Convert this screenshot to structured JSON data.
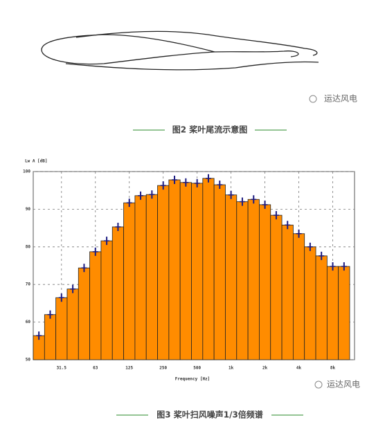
{
  "figure2": {
    "caption": "图2 桨叶尾流示意图",
    "watermark": "运达风电"
  },
  "chart_data": {
    "type": "bar",
    "y_label": "Lw A [dB]",
    "x_label": "Frequency [Hz]",
    "categories": [
      null,
      null,
      "31.5",
      null,
      null,
      "63",
      null,
      null,
      "125",
      null,
      null,
      "250",
      null,
      null,
      "500",
      null,
      null,
      "1k",
      null,
      null,
      "2k",
      null,
      null,
      "4k",
      null,
      null,
      "8k",
      null
    ],
    "values": [
      56.4,
      62,
      66.5,
      68.8,
      74.4,
      78.7,
      81.6,
      85.3,
      91.7,
      93.6,
      93.9,
      96.3,
      97.8,
      97.1,
      96.9,
      98.2,
      96.5,
      93.8,
      92,
      92.6,
      91.2,
      88.4,
      85.8,
      83.5,
      80,
      77.6,
      74.8,
      74.8
    ],
    "color": "#ff8c00",
    "marker_color": "#1a1a80",
    "ylim": [
      50,
      100
    ],
    "yticks": [
      50,
      60,
      70,
      80,
      90,
      100
    ],
    "grid": true,
    "caption": "图3 桨叶扫风噪声1/3倍频谱",
    "watermark": "运达风电"
  }
}
